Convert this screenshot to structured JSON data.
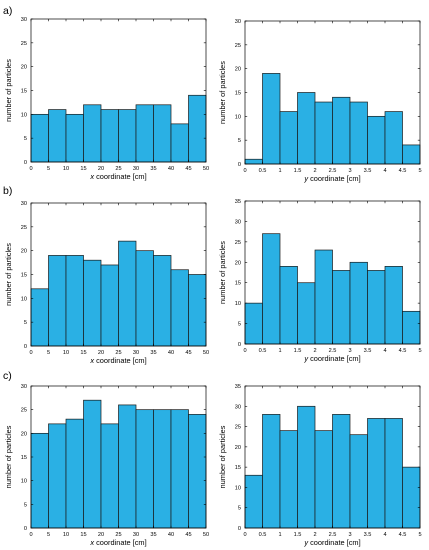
{
  "colors": {
    "bar_fill": "#2ab0e4",
    "bar_stroke": "#1a1a1a",
    "axis": "#000000"
  },
  "panel_labels": [
    "a)",
    "b)",
    "c)"
  ],
  "chart_data": [
    {
      "type": "bar",
      "panel": "a)",
      "xlabel_var": "x",
      "xlabel_rest": " coordinate [cm]",
      "ylabel": "number of particles",
      "xlim": [
        0,
        50
      ],
      "ylim": [
        0,
        30
      ],
      "xticks": [
        0,
        5,
        10,
        15,
        20,
        25,
        30,
        35,
        40,
        45,
        50
      ],
      "xtick_labels": [
        "0",
        "5",
        "10",
        "15",
        "20",
        "25",
        "30",
        "35",
        "40",
        "45",
        "50"
      ],
      "yticks": [
        0,
        5,
        10,
        15,
        20,
        25,
        30
      ],
      "ytick_labels": [
        "0",
        "5",
        "10",
        "15",
        "20",
        "25",
        "30"
      ],
      "bin_edges": [
        0,
        5,
        10,
        15,
        20,
        25,
        30,
        35,
        40,
        45,
        50
      ],
      "values": [
        10,
        11,
        10,
        12,
        11,
        11,
        12,
        12,
        8,
        14
      ],
      "grid": false
    },
    {
      "type": "bar",
      "panel": "a)",
      "xlabel_var": "y",
      "xlabel_rest": " coordinate [cm]",
      "ylabel": "number of particles",
      "xlim": [
        0,
        5
      ],
      "ylim": [
        0,
        30
      ],
      "xticks": [
        0,
        0.5,
        1,
        1.5,
        2,
        2.5,
        3,
        3.5,
        4,
        4.5,
        5
      ],
      "xtick_labels": [
        "0",
        "0.5",
        "1",
        "1.5",
        "2",
        "2.5",
        "3",
        "3.5",
        "4",
        "4.5",
        "5"
      ],
      "yticks": [
        0,
        5,
        10,
        15,
        20,
        25,
        30
      ],
      "ytick_labels": [
        "0",
        "5",
        "10",
        "15",
        "20",
        "25",
        "30"
      ],
      "bin_edges": [
        0,
        0.5,
        1,
        1.5,
        2,
        2.5,
        3,
        3.5,
        4,
        4.5,
        5
      ],
      "values": [
        1,
        19,
        11,
        15,
        13,
        14,
        13,
        10,
        11,
        4
      ],
      "grid": false
    },
    {
      "type": "bar",
      "panel": "b)",
      "xlabel_var": "x",
      "xlabel_rest": " coordinate [cm]",
      "ylabel": "number of particles",
      "xlim": [
        0,
        50
      ],
      "ylim": [
        0,
        30
      ],
      "xticks": [
        0,
        5,
        10,
        15,
        20,
        25,
        30,
        35,
        40,
        45,
        50
      ],
      "xtick_labels": [
        "0",
        "5",
        "10",
        "15",
        "20",
        "25",
        "30",
        "35",
        "40",
        "45",
        "50"
      ],
      "yticks": [
        0,
        5,
        10,
        15,
        20,
        25,
        30
      ],
      "ytick_labels": [
        "0",
        "5",
        "10",
        "15",
        "20",
        "25",
        "30"
      ],
      "bin_edges": [
        0,
        5,
        10,
        15,
        20,
        25,
        30,
        35,
        40,
        45,
        50
      ],
      "values": [
        12,
        19,
        19,
        18,
        17,
        22,
        20,
        19,
        16,
        15
      ],
      "grid": false
    },
    {
      "type": "bar",
      "panel": "b)",
      "xlabel_var": "y",
      "xlabel_rest": " coordinate [cm]",
      "ylabel": "number of particles",
      "xlim": [
        0,
        5
      ],
      "ylim": [
        0,
        35
      ],
      "xticks": [
        0,
        0.5,
        1,
        1.5,
        2,
        2.5,
        3,
        3.5,
        4,
        4.5,
        5
      ],
      "xtick_labels": [
        "0",
        "0.5",
        "1",
        "1.5",
        "2",
        "2.5",
        "3",
        "3.5",
        "4",
        "4.5",
        "5"
      ],
      "yticks": [
        0,
        5,
        10,
        15,
        20,
        25,
        30,
        35
      ],
      "ytick_labels": [
        "0",
        "5",
        "10",
        "15",
        "20",
        "25",
        "30",
        "35"
      ],
      "bin_edges": [
        0,
        0.5,
        1,
        1.5,
        2,
        2.5,
        3,
        3.5,
        4,
        4.5,
        5
      ],
      "values": [
        10,
        27,
        19,
        15,
        23,
        18,
        20,
        18,
        19,
        8
      ],
      "grid": false
    },
    {
      "type": "bar",
      "panel": "c)",
      "xlabel_var": "x",
      "xlabel_rest": " coordinate [cm]",
      "ylabel": "number of particles",
      "xlim": [
        0,
        50
      ],
      "ylim": [
        0,
        30
      ],
      "xticks": [
        0,
        5,
        10,
        15,
        20,
        25,
        30,
        35,
        40,
        45,
        50
      ],
      "xtick_labels": [
        "0",
        "5",
        "10",
        "15",
        "20",
        "25",
        "30",
        "35",
        "40",
        "45",
        "50"
      ],
      "yticks": [
        0,
        5,
        10,
        15,
        20,
        25,
        30
      ],
      "ytick_labels": [
        "0",
        "5",
        "10",
        "15",
        "20",
        "25",
        "30"
      ],
      "bin_edges": [
        0,
        5,
        10,
        15,
        20,
        25,
        30,
        35,
        40,
        45,
        50
      ],
      "values": [
        20,
        22,
        23,
        27,
        22,
        26,
        25,
        25,
        25,
        24
      ],
      "grid": false
    },
    {
      "type": "bar",
      "panel": "c)",
      "xlabel_var": "y",
      "xlabel_rest": " coordinate [cm]",
      "ylabel": "number of particles",
      "xlim": [
        0,
        5
      ],
      "ylim": [
        0,
        35
      ],
      "xticks": [
        0,
        0.5,
        1,
        1.5,
        2,
        2.5,
        3,
        3.5,
        4,
        4.5,
        5
      ],
      "xtick_labels": [
        "0",
        "0.5",
        "1",
        "1.5",
        "2",
        "2.5",
        "3",
        "3.5",
        "4",
        "4.5",
        "5"
      ],
      "yticks": [
        0,
        5,
        10,
        15,
        20,
        25,
        30,
        35
      ],
      "ytick_labels": [
        "0",
        "5",
        "10",
        "15",
        "20",
        "25",
        "30",
        "35"
      ],
      "bin_edges": [
        0,
        0.5,
        1,
        1.5,
        2,
        2.5,
        3,
        3.5,
        4,
        4.5,
        5
      ],
      "values": [
        13,
        28,
        24,
        30,
        24,
        28,
        23,
        27,
        27,
        15
      ],
      "grid": false
    }
  ]
}
